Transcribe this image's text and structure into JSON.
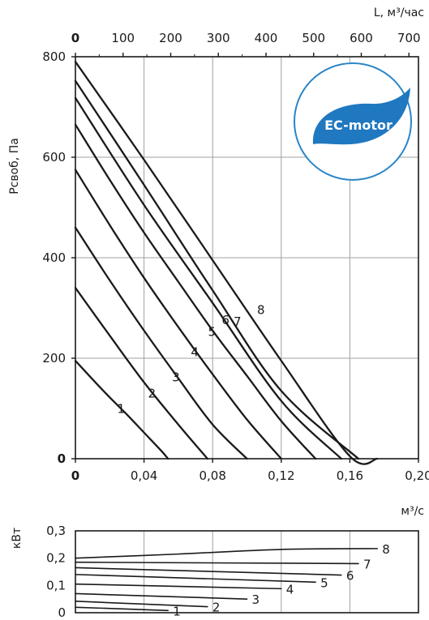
{
  "chart_data": [
    {
      "type": "line",
      "title": "",
      "xlabel": "м³/с",
      "ylabel": "Pсвоб, Па",
      "x2label": "L, м³/час",
      "xlim": [
        0,
        0.2
      ],
      "ylim": [
        0,
        800
      ],
      "x2lim": [
        0,
        720
      ],
      "xticks": [
        "0",
        "0,04",
        "0,08",
        "0,12",
        "0,16",
        "0,20"
      ],
      "yticks": [
        "0",
        "200",
        "400",
        "600",
        "800"
      ],
      "x2ticks": [
        "0",
        "100",
        "200",
        "300",
        "400",
        "500",
        "600",
        "700"
      ],
      "grid": true,
      "series": [
        {
          "name": "1",
          "x": [
            0,
            0.01,
            0.02,
            0.03,
            0.04,
            0.05,
            0.054
          ],
          "y": [
            195,
            158,
            122,
            88,
            52,
            16,
            0
          ]
        },
        {
          "name": "2",
          "x": [
            0,
            0.02,
            0.04,
            0.06,
            0.077
          ],
          "y": [
            340,
            245,
            152,
            68,
            0
          ]
        },
        {
          "name": "3",
          "x": [
            0,
            0.02,
            0.04,
            0.06,
            0.08,
            0.1
          ],
          "y": [
            460,
            355,
            255,
            160,
            68,
            0
          ]
        },
        {
          "name": "4",
          "x": [
            0,
            0.02,
            0.04,
            0.06,
            0.08,
            0.1,
            0.12
          ],
          "y": [
            575,
            465,
            360,
            262,
            168,
            78,
            0
          ]
        },
        {
          "name": "5",
          "x": [
            0,
            0.02,
            0.04,
            0.06,
            0.08,
            0.1,
            0.12,
            0.14
          ],
          "y": [
            665,
            555,
            450,
            352,
            255,
            165,
            75,
            0
          ]
        },
        {
          "name": "6",
          "x": [
            0,
            0.04,
            0.08,
            0.12,
            0.155
          ],
          "y": [
            718,
            505,
            310,
            115,
            0
          ]
        },
        {
          "name": "7",
          "x": [
            0,
            0.04,
            0.08,
            0.12,
            0.165
          ],
          "y": [
            752,
            545,
            335,
            135,
            0
          ]
        },
        {
          "name": "8",
          "x": [
            0,
            0.04,
            0.08,
            0.12,
            0.16,
            0.176
          ],
          "y": [
            790,
            595,
            395,
            195,
            5,
            0
          ]
        }
      ],
      "badge": "EC-motor",
      "colors": {
        "badge_ring": "#2a85c8",
        "badge_leaf": "#1f78c0",
        "badge_text": "#ffffff"
      }
    },
    {
      "type": "line",
      "title": "",
      "ylabel": "кВт",
      "xlim": [
        0,
        0.2
      ],
      "ylim": [
        0,
        0.3
      ],
      "yticks": [
        "0",
        "0,1",
        "0,2",
        "0,3"
      ],
      "grid": true,
      "series": [
        {
          "name": "1",
          "x": [
            0,
            0.054
          ],
          "y": [
            0.02,
            0.008
          ]
        },
        {
          "name": "2",
          "x": [
            0,
            0.077
          ],
          "y": [
            0.042,
            0.022
          ]
        },
        {
          "name": "3",
          "x": [
            0,
            0.1
          ],
          "y": [
            0.07,
            0.05
          ]
        },
        {
          "name": "4",
          "x": [
            0,
            0.12
          ],
          "y": [
            0.105,
            0.088
          ]
        },
        {
          "name": "5",
          "x": [
            0,
            0.14
          ],
          "y": [
            0.14,
            0.112
          ]
        },
        {
          "name": "6",
          "x": [
            0,
            0.155
          ],
          "y": [
            0.165,
            0.138
          ]
        },
        {
          "name": "7",
          "x": [
            0,
            0.165
          ],
          "y": [
            0.185,
            0.18
          ]
        },
        {
          "name": "8",
          "x": [
            0,
            0.06,
            0.12,
            0.176
          ],
          "y": [
            0.2,
            0.215,
            0.232,
            0.235
          ]
        }
      ]
    }
  ]
}
